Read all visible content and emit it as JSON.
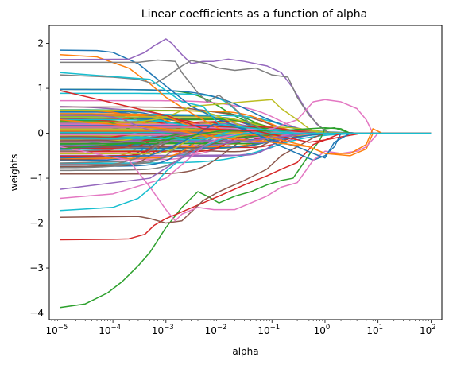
{
  "chart_data": {
    "type": "line",
    "title": "Linear coefficients as a function of alpha",
    "xlabel": "alpha",
    "ylabel": "weights",
    "xscale": "log",
    "xlim": [
      6.3e-06,
      160
    ],
    "ylim": [
      -4.15,
      2.4
    ],
    "grid": false,
    "legend": "none",
    "xticks": [
      {
        "value": 1e-05,
        "base": "10",
        "exp": "−5"
      },
      {
        "value": 0.0001,
        "base": "10",
        "exp": "−4"
      },
      {
        "value": 0.001,
        "base": "10",
        "exp": "−3"
      },
      {
        "value": 0.01,
        "base": "10",
        "exp": "−2"
      },
      {
        "value": 0.1,
        "base": "10",
        "exp": "−1"
      },
      {
        "value": 1,
        "base": "10",
        "exp": "0"
      },
      {
        "value": 10,
        "base": "10",
        "exp": "1"
      },
      {
        "value": 100,
        "base": "10",
        "exp": "2"
      }
    ],
    "yticks": [
      {
        "value": 2,
        "label": "2"
      },
      {
        "value": 1,
        "label": "1"
      },
      {
        "value": 0,
        "label": "0"
      },
      {
        "value": -1,
        "label": "−1"
      },
      {
        "value": -2,
        "label": "−2"
      },
      {
        "value": -3,
        "label": "−3"
      },
      {
        "value": -4,
        "label": "−4"
      }
    ],
    "x_range": [
      1e-05,
      100
    ],
    "background_series_count": 180,
    "series": [
      {
        "color": "#2ca02c",
        "points": [
          [
            1e-05,
            -3.88
          ],
          [
            3e-05,
            -3.8
          ],
          [
            8e-05,
            -3.55
          ],
          [
            0.00015,
            -3.3
          ],
          [
            0.0003,
            -2.95
          ],
          [
            0.0005,
            -2.65
          ],
          [
            0.001,
            -2.1
          ],
          [
            0.002,
            -1.65
          ],
          [
            0.004,
            -1.3
          ],
          [
            0.006,
            -1.4
          ],
          [
            0.01,
            -1.55
          ],
          [
            0.02,
            -1.4
          ],
          [
            0.04,
            -1.3
          ],
          [
            0.08,
            -1.15
          ],
          [
            0.15,
            -1.05
          ],
          [
            0.25,
            -1.0
          ],
          [
            0.4,
            -0.65
          ],
          [
            0.6,
            -0.35
          ],
          [
            0.8,
            -0.15
          ],
          [
            1.0,
            0.1
          ],
          [
            1.5,
            0.12
          ],
          [
            3,
            0.0
          ],
          [
            100,
            0.0
          ]
        ]
      },
      {
        "color": "#d62728",
        "points": [
          [
            1e-05,
            -2.37
          ],
          [
            0.0001,
            -2.36
          ],
          [
            0.0002,
            -2.35
          ],
          [
            0.0004,
            -2.25
          ],
          [
            0.0006,
            -2.05
          ],
          [
            0.001,
            -1.9
          ],
          [
            0.002,
            -1.75
          ],
          [
            0.005,
            -1.55
          ],
          [
            0.01,
            -1.4
          ],
          [
            0.03,
            -1.15
          ],
          [
            0.08,
            -0.95
          ],
          [
            0.15,
            -0.8
          ],
          [
            0.3,
            -0.65
          ],
          [
            0.6,
            -0.25
          ],
          [
            1,
            -0.15
          ],
          [
            2,
            -0.08
          ],
          [
            5,
            0.0
          ],
          [
            100,
            0.0
          ]
        ]
      },
      {
        "color": "#8c564b",
        "points": [
          [
            1e-05,
            -1.87
          ],
          [
            0.0003,
            -1.85
          ],
          [
            0.0005,
            -1.9
          ],
          [
            0.001,
            -2.0
          ],
          [
            0.002,
            -1.95
          ],
          [
            0.005,
            -1.5
          ],
          [
            0.01,
            -1.3
          ],
          [
            0.03,
            -1.05
          ],
          [
            0.08,
            -0.8
          ],
          [
            0.15,
            -0.5
          ],
          [
            0.3,
            -0.3
          ],
          [
            0.6,
            -0.1
          ],
          [
            1,
            0.0
          ],
          [
            100,
            0.0
          ]
        ]
      },
      {
        "color": "#1f77b4",
        "points": [
          [
            1e-05,
            1.85
          ],
          [
            5e-05,
            1.84
          ],
          [
            0.0001,
            1.8
          ],
          [
            0.0003,
            1.55
          ],
          [
            0.001,
            1.05
          ],
          [
            0.003,
            0.6
          ],
          [
            0.01,
            0.3
          ],
          [
            0.03,
            0.1
          ],
          [
            0.1,
            -0.2
          ],
          [
            0.3,
            -0.45
          ],
          [
            0.6,
            -0.6
          ],
          [
            1,
            -0.5
          ],
          [
            1.5,
            -0.3
          ],
          [
            2,
            0.0
          ],
          [
            100,
            0.0
          ]
        ]
      },
      {
        "color": "#ff7f0e",
        "points": [
          [
            1e-05,
            1.75
          ],
          [
            5e-05,
            1.7
          ],
          [
            0.0002,
            1.45
          ],
          [
            0.0005,
            1.1
          ],
          [
            0.001,
            0.8
          ],
          [
            0.003,
            0.45
          ],
          [
            0.01,
            0.1
          ],
          [
            0.1,
            -0.1
          ],
          [
            0.5,
            -0.3
          ],
          [
            1,
            -0.45
          ],
          [
            3,
            -0.5
          ],
          [
            6,
            -0.35
          ],
          [
            8,
            0.0
          ],
          [
            100,
            0.0
          ]
        ]
      },
      {
        "color": "#9467bd",
        "points": [
          [
            1e-05,
            1.64
          ],
          [
            0.0002,
            1.65
          ],
          [
            0.0004,
            1.8
          ],
          [
            0.0006,
            1.95
          ],
          [
            0.001,
            2.1
          ],
          [
            0.0013,
            2.0
          ],
          [
            0.002,
            1.75
          ],
          [
            0.003,
            1.55
          ],
          [
            0.005,
            1.6
          ],
          [
            0.008,
            1.6
          ],
          [
            0.015,
            1.65
          ],
          [
            0.03,
            1.6
          ],
          [
            0.08,
            1.5
          ],
          [
            0.15,
            1.35
          ],
          [
            0.25,
            1.0
          ],
          [
            0.4,
            0.6
          ],
          [
            0.7,
            0.2
          ],
          [
            1.2,
            0.0
          ],
          [
            100,
            0.0
          ]
        ]
      },
      {
        "color": "#7f7f7f",
        "points": [
          [
            1e-05,
            1.58
          ],
          [
            0.0003,
            1.58
          ],
          [
            0.0007,
            1.63
          ],
          [
            0.0015,
            1.6
          ],
          [
            0.002,
            1.35
          ],
          [
            0.004,
            0.9
          ],
          [
            0.006,
            0.7
          ],
          [
            0.01,
            0.85
          ],
          [
            0.02,
            0.55
          ],
          [
            0.04,
            0.2
          ],
          [
            0.1,
            0.0
          ],
          [
            100,
            0.0
          ]
        ]
      },
      {
        "color": "#7f7f7f",
        "points": [
          [
            1e-05,
            1.3
          ],
          [
            0.0001,
            1.25
          ],
          [
            0.0003,
            1.2
          ],
          [
            0.0006,
            1.1
          ],
          [
            0.001,
            1.25
          ],
          [
            0.002,
            1.5
          ],
          [
            0.003,
            1.62
          ],
          [
            0.006,
            1.55
          ],
          [
            0.01,
            1.45
          ],
          [
            0.02,
            1.4
          ],
          [
            0.05,
            1.45
          ],
          [
            0.1,
            1.3
          ],
          [
            0.2,
            1.25
          ],
          [
            0.3,
            0.8
          ],
          [
            0.5,
            0.4
          ],
          [
            0.8,
            0.15
          ],
          [
            1.2,
            0.0
          ],
          [
            100,
            0.0
          ]
        ]
      },
      {
        "color": "#e377c2",
        "points": [
          [
            1e-05,
            -1.45
          ],
          [
            0.0001,
            -1.35
          ],
          [
            0.0005,
            -1.1
          ],
          [
            0.001,
            -1.0
          ],
          [
            0.002,
            -0.7
          ],
          [
            0.005,
            -0.3
          ],
          [
            0.01,
            -0.1
          ],
          [
            0.03,
            0.0
          ],
          [
            0.1,
            0.1
          ],
          [
            0.3,
            0.3
          ],
          [
            0.6,
            0.7
          ],
          [
            1,
            0.75
          ],
          [
            2,
            0.7
          ],
          [
            4,
            0.55
          ],
          [
            6,
            0.3
          ],
          [
            8,
            0.0
          ],
          [
            100,
            0.0
          ]
        ]
      },
      {
        "color": "#e377c2",
        "points": [
          [
            1e-05,
            -0.3
          ],
          [
            0.0002,
            -0.6
          ],
          [
            0.0005,
            -1.2
          ],
          [
            0.001,
            -1.7
          ],
          [
            0.0015,
            -1.95
          ],
          [
            0.002,
            -1.8
          ],
          [
            0.004,
            -1.65
          ],
          [
            0.008,
            -1.7
          ],
          [
            0.02,
            -1.7
          ],
          [
            0.04,
            -1.55
          ],
          [
            0.08,
            -1.4
          ],
          [
            0.15,
            -1.2
          ],
          [
            0.3,
            -1.1
          ],
          [
            0.6,
            -0.6
          ],
          [
            1,
            -0.4
          ],
          [
            2,
            -0.45
          ],
          [
            4,
            -0.4
          ],
          [
            6,
            -0.3
          ],
          [
            10,
            0.0
          ],
          [
            100,
            0.0
          ]
        ]
      },
      {
        "color": "#bcbd22",
        "points": [
          [
            1e-05,
            0.25
          ],
          [
            0.0003,
            0.25
          ],
          [
            0.001,
            0.35
          ],
          [
            0.003,
            0.6
          ],
          [
            0.01,
            0.65
          ],
          [
            0.03,
            0.7
          ],
          [
            0.1,
            0.75
          ],
          [
            0.15,
            0.55
          ],
          [
            0.3,
            0.3
          ],
          [
            0.5,
            0.1
          ],
          [
            0.8,
            0.0
          ],
          [
            100,
            0.0
          ]
        ]
      },
      {
        "color": "#17becf",
        "points": [
          [
            1e-05,
            -1.72
          ],
          [
            0.0001,
            -1.65
          ],
          [
            0.0003,
            -1.45
          ],
          [
            0.0006,
            -1.15
          ],
          [
            0.001,
            -0.85
          ],
          [
            0.002,
            -0.55
          ],
          [
            0.004,
            -0.35
          ],
          [
            0.01,
            -0.15
          ],
          [
            0.03,
            0.0
          ],
          [
            100,
            0.0
          ]
        ]
      },
      {
        "color": "#1f77b4",
        "points": [
          [
            1e-05,
            -0.55
          ],
          [
            0.0005,
            -0.5
          ],
          [
            0.002,
            -0.2
          ],
          [
            0.008,
            0.2
          ],
          [
            0.02,
            0.15
          ],
          [
            0.1,
            -0.15
          ],
          [
            0.3,
            -0.3
          ],
          [
            0.6,
            -0.45
          ],
          [
            1,
            -0.55
          ],
          [
            1.5,
            -0.2
          ],
          [
            3,
            0.0
          ],
          [
            100,
            0.0
          ]
        ]
      },
      {
        "color": "#ff7f0e",
        "points": [
          [
            1e-05,
            0.3
          ],
          [
            0.001,
            0.1
          ],
          [
            0.01,
            -0.1
          ],
          [
            0.1,
            -0.2
          ],
          [
            0.5,
            -0.3
          ],
          [
            1,
            -0.45
          ],
          [
            3,
            -0.45
          ],
          [
            6,
            -0.25
          ],
          [
            8,
            0.1
          ],
          [
            12,
            0.0
          ],
          [
            100,
            0.0
          ]
        ]
      },
      {
        "color": "#2ca02c",
        "points": [
          [
            1e-05,
            -0.35
          ],
          [
            0.001,
            -0.15
          ],
          [
            0.01,
            0.05
          ],
          [
            0.1,
            0.05
          ],
          [
            0.5,
            0.1
          ],
          [
            1,
            0.12
          ],
          [
            2,
            0.1
          ],
          [
            3,
            0.0
          ],
          [
            100,
            0.0
          ]
        ]
      },
      {
        "color": "#d62728",
        "points": [
          [
            1e-05,
            0.95
          ],
          [
            0.001,
            0.4
          ],
          [
            0.005,
            0.1
          ],
          [
            0.05,
            0.05
          ],
          [
            0.2,
            -0.1
          ],
          [
            0.5,
            -0.2
          ],
          [
            1,
            -0.15
          ],
          [
            2,
            0.0
          ],
          [
            100,
            0.0
          ]
        ]
      },
      {
        "color": "#9467bd",
        "points": [
          [
            1e-05,
            -1.25
          ],
          [
            0.0005,
            -1.0
          ],
          [
            0.002,
            -0.55
          ],
          [
            0.005,
            -0.3
          ],
          [
            0.02,
            -0.2
          ],
          [
            0.1,
            -0.1
          ],
          [
            0.5,
            0.0
          ],
          [
            100,
            0.0
          ]
        ]
      },
      {
        "color": "#17becf",
        "points": [
          [
            1e-05,
            1.35
          ],
          [
            0.0005,
            1.2
          ],
          [
            0.002,
            0.7
          ],
          [
            0.005,
            0.6
          ],
          [
            0.01,
            0.2
          ],
          [
            0.05,
            0.1
          ],
          [
            0.3,
            0.0
          ],
          [
            100,
            0.0
          ]
        ]
      }
    ]
  }
}
